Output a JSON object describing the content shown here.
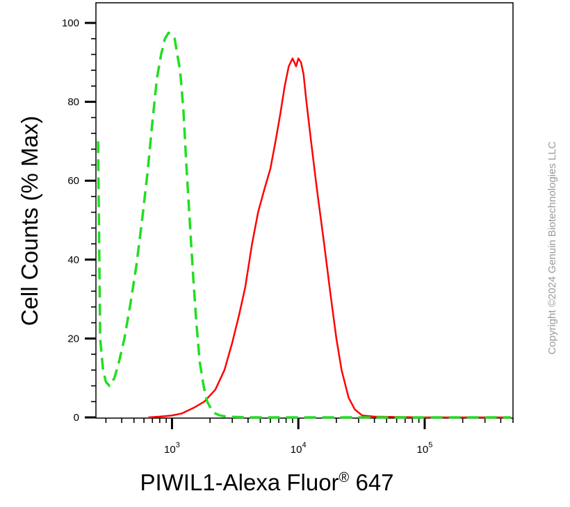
{
  "chart_data": {
    "type": "line",
    "title": "",
    "ylabel": "Cell Counts (% Max)",
    "xlabel_main": "PIWIL1-Alexa Fluor",
    "xlabel_mark": "®",
    "xlabel_tail": " 647",
    "x_scale": "log",
    "xlim": [
      250,
      500000
    ],
    "ylim": [
      0,
      100
    ],
    "y_ticks": [
      0,
      20,
      40,
      60,
      80,
      100
    ],
    "x_major_ticks": [
      {
        "base": "10",
        "exp": "3",
        "value": 1000
      },
      {
        "base": "10",
        "exp": "4",
        "value": 10000
      },
      {
        "base": "10",
        "exp": "5",
        "value": 100000
      }
    ],
    "grid": false,
    "series": [
      {
        "color": "#ff0000",
        "dash": "solid",
        "x": [
          650,
          800,
          1000,
          1200,
          1500,
          1800,
          2200,
          2600,
          3000,
          3400,
          3800,
          4300,
          4800,
          5400,
          6000,
          6600,
          7200,
          7800,
          8400,
          9000,
          9600,
          10000,
          10500,
          11000,
          11500,
          12500,
          14000,
          16000,
          18000,
          20000,
          22000,
          25000,
          28000,
          32000,
          40000,
          60000,
          100000,
          200000,
          480000
        ],
        "y": [
          0,
          0.2,
          0.5,
          1,
          2.5,
          4,
          7,
          12,
          19,
          26,
          33,
          44,
          52,
          58,
          63,
          70,
          77,
          84,
          89,
          91,
          89,
          91,
          90,
          87,
          81,
          71,
          58,
          44,
          31,
          20,
          12,
          5,
          2,
          0.5,
          0.2,
          0.1,
          0,
          0,
          0
        ]
      },
      {
        "color": "#22dd22",
        "dash": "dashed",
        "x": [
          260,
          270,
          285,
          300,
          320,
          350,
          380,
          420,
          470,
          520,
          580,
          640,
          700,
          760,
          820,
          880,
          940,
          1000,
          1050,
          1100,
          1160,
          1230,
          1300,
          1380,
          1470,
          1560,
          1660,
          1780,
          1900,
          2050,
          2200,
          2400,
          2700,
          3200,
          4000,
          6000,
          10000,
          30000,
          100000,
          480000
        ],
        "y": [
          70,
          20,
          12,
          9,
          8,
          10,
          14,
          20,
          29,
          38,
          50,
          62,
          75,
          86,
          92,
          96,
          97.5,
          97,
          96,
          92,
          88,
          78,
          64,
          50,
          36,
          24,
          14,
          8,
          4,
          2,
          1,
          0.5,
          0.2,
          0.1,
          0,
          0,
          0,
          0,
          0,
          0
        ]
      }
    ]
  },
  "copyright": "Copyright ©2024 Genuin Biotechnologies LLC"
}
